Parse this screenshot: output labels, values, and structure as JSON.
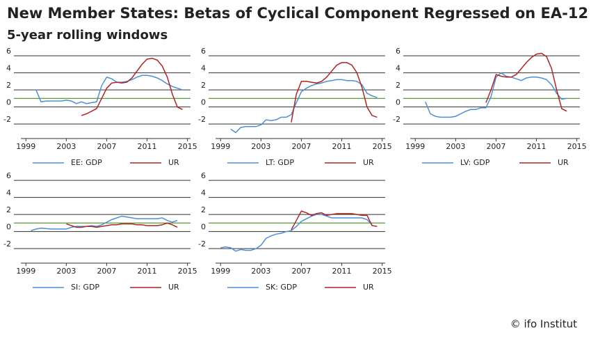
{
  "title": "New Member States: Betas of Cyclical Component Regressed on EA-12",
  "subtitle": "5-year rolling windows",
  "source": "© ifo Institut",
  "chart_data": [
    {
      "type": "line",
      "x": [
        1999,
        1999.5,
        2000,
        2000.5,
        2001,
        2001.5,
        2002,
        2002.5,
        2003,
        2003.5,
        2004,
        2004.5,
        2005,
        2005.5,
        2006,
        2006.5,
        2007,
        2007.5,
        2008,
        2008.5,
        2009,
        2009.5,
        2010,
        2010.5,
        2011,
        2011.5,
        2012,
        2012.5,
        2013,
        2013.5,
        2014,
        2014.5
      ],
      "xlim": [
        1998.5,
        2015.3
      ],
      "xticks": [
        1999,
        2003,
        2007,
        2011,
        2015
      ],
      "ylim": [
        -3.7,
        6.5
      ],
      "yticks": [
        -2,
        0,
        2,
        4,
        6
      ],
      "grid": true,
      "reference_line": 1,
      "reference_color": "#5a9e2f",
      "series": [
        {
          "name": "EE: GDP",
          "color": "#4a90d9",
          "values": [
            null,
            null,
            2.0,
            0.6,
            0.7,
            0.7,
            0.7,
            0.7,
            0.8,
            0.7,
            0.4,
            0.6,
            0.4,
            0.5,
            0.6,
            2.5,
            3.5,
            3.3,
            2.9,
            2.9,
            3.0,
            3.2,
            3.5,
            3.7,
            3.7,
            3.6,
            3.4,
            3.1,
            2.7,
            2.4,
            2.2,
            2.0
          ]
        },
        {
          "name": "UR",
          "color": "#b22222",
          "values": [
            null,
            null,
            null,
            null,
            null,
            null,
            null,
            null,
            null,
            null,
            null,
            -1.0,
            -0.8,
            -0.5,
            -0.2,
            1.0,
            2.2,
            2.8,
            2.9,
            2.8,
            2.9,
            3.4,
            4.2,
            5.0,
            5.6,
            5.7,
            5.5,
            4.8,
            3.5,
            1.5,
            0.0,
            -0.3
          ]
        }
      ]
    },
    {
      "type": "line",
      "x": [
        1999,
        1999.5,
        2000,
        2000.5,
        2001,
        2001.5,
        2002,
        2002.5,
        2003,
        2003.5,
        2004,
        2004.5,
        2005,
        2005.5,
        2006,
        2006.5,
        2007,
        2007.5,
        2008,
        2008.5,
        2009,
        2009.5,
        2010,
        2010.5,
        2011,
        2011.5,
        2012,
        2012.5,
        2013,
        2013.5,
        2014,
        2014.5
      ],
      "xlim": [
        1998.5,
        2015.3
      ],
      "xticks": [
        1999,
        2003,
        2007,
        2011,
        2015
      ],
      "ylim": [
        -3.7,
        6.5
      ],
      "yticks": [
        -2,
        0,
        2,
        4,
        6
      ],
      "grid": true,
      "reference_line": 1,
      "reference_color": "#5a9e2f",
      "series": [
        {
          "name": "LT: GDP",
          "color": "#4a90d9",
          "values": [
            null,
            null,
            -2.6,
            -3.0,
            -2.4,
            -2.3,
            -2.3,
            -2.3,
            -2.1,
            -1.5,
            -1.6,
            -1.5,
            -1.2,
            -1.2,
            -0.9,
            0.5,
            1.8,
            2.2,
            2.5,
            2.7,
            2.8,
            3.0,
            3.1,
            3.2,
            3.2,
            3.1,
            3.1,
            3.0,
            2.6,
            1.6,
            1.3,
            1.1
          ]
        },
        {
          "name": "UR",
          "color": "#b22222",
          "values": [
            null,
            null,
            null,
            null,
            null,
            null,
            null,
            null,
            null,
            null,
            null,
            null,
            null,
            null,
            -1.8,
            1.5,
            3.0,
            3.0,
            2.9,
            2.8,
            3.0,
            3.5,
            4.2,
            4.9,
            5.2,
            5.2,
            4.9,
            4.0,
            2.3,
            0.0,
            -1.0,
            -1.2
          ]
        }
      ]
    },
    {
      "type": "line",
      "x": [
        1999,
        1999.5,
        2000,
        2000.5,
        2001,
        2001.5,
        2002,
        2002.5,
        2003,
        2003.5,
        2004,
        2004.5,
        2005,
        2005.5,
        2006,
        2006.5,
        2007,
        2007.5,
        2008,
        2008.5,
        2009,
        2009.5,
        2010,
        2010.5,
        2011,
        2011.5,
        2012,
        2012.5,
        2013,
        2013.5,
        2014,
        2014.5
      ],
      "xlim": [
        1998.5,
        2015.3
      ],
      "xticks": [
        1999,
        2003,
        2007,
        2011,
        2015
      ],
      "ylim": [
        -3.7,
        6.5
      ],
      "yticks": [
        -2,
        0,
        2,
        4,
        6
      ],
      "grid": true,
      "reference_line": 1,
      "reference_color": "#5a9e2f",
      "series": [
        {
          "name": "LV: GDP",
          "color": "#4a90d9",
          "values": [
            null,
            null,
            0.6,
            -0.8,
            -1.1,
            -1.2,
            -1.2,
            -1.2,
            -1.1,
            -0.8,
            -0.5,
            -0.3,
            -0.3,
            -0.1,
            -0.1,
            1.2,
            3.5,
            4.0,
            3.6,
            3.5,
            3.3,
            3.1,
            3.4,
            3.5,
            3.5,
            3.4,
            3.2,
            2.6,
            1.6,
            0.9,
            1.0,
            null
          ]
        },
        {
          "name": "UR",
          "color": "#b22222",
          "values": [
            null,
            null,
            null,
            null,
            null,
            null,
            null,
            null,
            null,
            null,
            null,
            null,
            null,
            null,
            0.5,
            2.0,
            3.8,
            3.6,
            3.5,
            3.5,
            3.8,
            4.5,
            5.2,
            5.8,
            6.2,
            6.3,
            5.9,
            4.5,
            2.0,
            -0.2,
            -0.5,
            null
          ]
        }
      ]
    },
    {
      "type": "line",
      "x": [
        1999,
        1999.5,
        2000,
        2000.5,
        2001,
        2001.5,
        2002,
        2002.5,
        2003,
        2003.5,
        2004,
        2004.5,
        2005,
        2005.5,
        2006,
        2006.5,
        2007,
        2007.5,
        2008,
        2008.5,
        2009,
        2009.5,
        2010,
        2010.5,
        2011,
        2011.5,
        2012,
        2012.5,
        2013,
        2013.5,
        2014,
        2014.5
      ],
      "xlim": [
        1998.5,
        2015.3
      ],
      "xticks": [
        1999,
        2003,
        2007,
        2011,
        2015
      ],
      "ylim": [
        -3.7,
        6.5
      ],
      "yticks": [
        -2,
        0,
        2,
        4,
        6
      ],
      "grid": true,
      "reference_line": 1,
      "reference_color": "#5a9e2f",
      "series": [
        {
          "name": "SI: GDP",
          "color": "#4a90d9",
          "values": [
            null,
            0.1,
            0.3,
            0.4,
            0.35,
            0.3,
            0.3,
            0.3,
            0.3,
            0.5,
            0.6,
            0.6,
            0.6,
            0.7,
            0.6,
            0.8,
            1.1,
            1.4,
            1.6,
            1.8,
            1.7,
            1.6,
            1.5,
            1.5,
            1.5,
            1.5,
            1.5,
            1.6,
            1.3,
            1.1,
            1.3,
            null
          ]
        },
        {
          "name": "UR",
          "color": "#b22222",
          "values": [
            null,
            null,
            null,
            null,
            null,
            null,
            null,
            null,
            0.9,
            0.7,
            0.5,
            0.5,
            0.6,
            0.6,
            0.5,
            0.6,
            0.7,
            0.8,
            0.8,
            0.9,
            0.9,
            0.9,
            0.8,
            0.8,
            0.7,
            0.7,
            0.7,
            0.8,
            1.0,
            0.8,
            0.5,
            null
          ]
        }
      ]
    },
    {
      "type": "line",
      "x": [
        1999,
        1999.5,
        2000,
        2000.5,
        2001,
        2001.5,
        2002,
        2002.5,
        2003,
        2003.5,
        2004,
        2004.5,
        2005,
        2005.5,
        2006,
        2006.5,
        2007,
        2007.5,
        2008,
        2008.5,
        2009,
        2009.5,
        2010,
        2010.5,
        2011,
        2011.5,
        2012,
        2012.5,
        2013,
        2013.5,
        2014,
        2014.5
      ],
      "xlim": [
        1998.5,
        2015.3
      ],
      "xticks": [
        1999,
        2003,
        2007,
        2011,
        2015
      ],
      "ylim": [
        -3.7,
        6.5
      ],
      "yticks": [
        -2,
        0,
        2,
        4,
        6
      ],
      "grid": true,
      "reference_line": 1,
      "reference_color": "#5a9e2f",
      "series": [
        {
          "name": "SK: GDP",
          "color": "#4a90d9",
          "values": [
            -1.9,
            -1.8,
            -1.9,
            -2.3,
            -2.1,
            -2.2,
            -2.2,
            -2.0,
            -1.6,
            -0.8,
            -0.5,
            -0.3,
            -0.2,
            0.0,
            0.1,
            0.6,
            1.2,
            1.5,
            1.8,
            2.0,
            2.0,
            1.8,
            1.6,
            1.6,
            1.6,
            1.6,
            1.6,
            1.6,
            1.6,
            1.4,
            0.8,
            null
          ]
        },
        {
          "name": "UR",
          "color": "#b22222",
          "values": [
            null,
            null,
            null,
            null,
            null,
            null,
            null,
            null,
            null,
            null,
            null,
            null,
            null,
            null,
            0.2,
            1.3,
            2.4,
            2.2,
            1.9,
            2.1,
            2.2,
            1.9,
            2.0,
            2.1,
            2.1,
            2.1,
            2.1,
            2.0,
            1.9,
            1.9,
            0.7,
            0.6
          ]
        }
      ]
    }
  ]
}
